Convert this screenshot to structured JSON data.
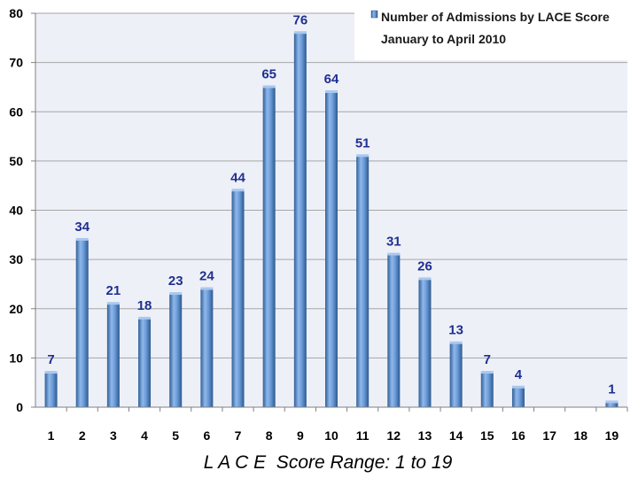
{
  "chart_data": {
    "type": "bar",
    "title": "",
    "xlabel": "L A C E  Score Range: 1 to 19",
    "ylabel": "",
    "ylim": [
      0,
      80
    ],
    "yticks": [
      0,
      10,
      20,
      30,
      40,
      50,
      60,
      70,
      80
    ],
    "grid": "horizontal",
    "legend_position": "top-right",
    "categories": [
      "1",
      "2",
      "3",
      "4",
      "5",
      "6",
      "7",
      "8",
      "9",
      "10",
      "11",
      "12",
      "13",
      "14",
      "15",
      "16",
      "17",
      "18",
      "19"
    ],
    "series": [
      {
        "name": "Number of Admissions by LACE Score January to April 2010",
        "values": [
          7,
          34,
          21,
          18,
          23,
          24,
          44,
          65,
          76,
          64,
          51,
          31,
          26,
          13,
          7,
          4,
          0,
          0,
          1
        ],
        "data_labels": [
          "7",
          "34",
          "21",
          "18",
          "23",
          "24",
          "44",
          "65",
          "76",
          "64",
          "51",
          "31",
          "26",
          "13",
          "7",
          "4",
          "",
          "",
          "1"
        ]
      }
    ],
    "legend": {
      "line1": "Number of Admissions by LACE Score",
      "line2": "January to April 2010"
    },
    "colors": {
      "bar": "#4f81bd",
      "bar_light": "#9dc3f0",
      "bar_dark": "#2c5a8f",
      "plot_bg": "#eef0f8",
      "grid": "#a6a6a6",
      "data_label": "#1f2f8f"
    }
  }
}
